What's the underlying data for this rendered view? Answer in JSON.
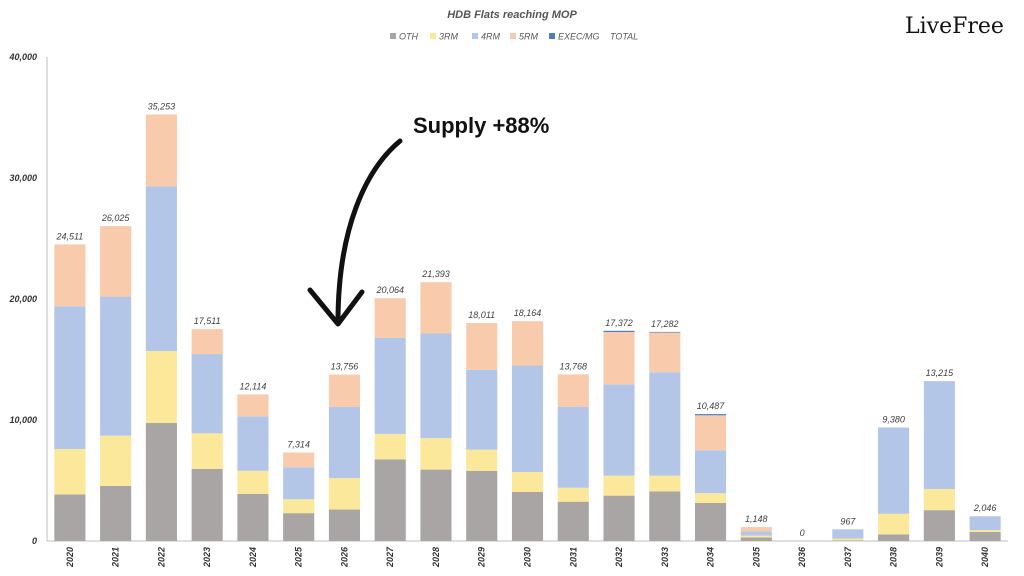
{
  "brand": "LiveFree",
  "annotation": "Supply +88%",
  "chart_data": {
    "type": "bar",
    "stacked": true,
    "title": "HDB Flats reaching MOP",
    "xlabel": "",
    "ylabel": "",
    "ylim": [
      0,
      40000
    ],
    "yticks": [
      "0",
      "10,000",
      "20,000",
      "30,000",
      "40,000"
    ],
    "ytick_values": [
      0,
      10000,
      20000,
      30000,
      40000
    ],
    "grid": false,
    "legend_position": "top",
    "categories": [
      "2020",
      "2021",
      "2022",
      "2023",
      "2024",
      "2025",
      "2026",
      "2027",
      "2028",
      "2029",
      "2030",
      "2031",
      "2032",
      "2033",
      "2034",
      "2035",
      "2036",
      "2037",
      "2038",
      "2039",
      "2040"
    ],
    "series": [
      {
        "name": "OTH",
        "color": "#aaa5a5",
        "values": [
          3850,
          4550,
          9750,
          5950,
          3900,
          2300,
          2600,
          6750,
          5900,
          5800,
          4050,
          3250,
          3750,
          4100,
          3150,
          300,
          0,
          50,
          550,
          2550,
          750
        ]
      },
      {
        "name": "3RM",
        "color": "#fce89a",
        "values": [
          3750,
          4150,
          5950,
          2950,
          1900,
          1150,
          2600,
          2100,
          2600,
          1750,
          1650,
          1150,
          1650,
          1300,
          800,
          150,
          0,
          150,
          1700,
          1750,
          150
        ]
      },
      {
        "name": "4RM",
        "color": "#b4c6e7",
        "values": [
          11800,
          11500,
          13600,
          6550,
          4500,
          2650,
          5900,
          7950,
          8650,
          6600,
          8800,
          6700,
          7550,
          8550,
          3550,
          350,
          0,
          767,
          7130,
          8915,
          1146
        ]
      },
      {
        "name": "5RM",
        "color": "#f8cbad",
        "values": [
          5111,
          5825,
          5953,
          2061,
          1814,
          1214,
          2656,
          3264,
          4243,
          3861,
          3664,
          2668,
          4322,
          3282,
          2887,
          348,
          0,
          0,
          0,
          0,
          0
        ]
      },
      {
        "name": "EXEC/MG",
        "color": "#4d7cc9",
        "values": [
          0,
          0,
          0,
          0,
          0,
          0,
          0,
          0,
          0,
          0,
          0,
          0,
          100,
          50,
          100,
          0,
          0,
          0,
          0,
          0,
          0
        ]
      }
    ],
    "totals_series_name": "TOTAL",
    "totals": [
      "24,511",
      "26,025",
      "35,253",
      "17,511",
      "12,114",
      "7,314",
      "13,756",
      "20,064",
      "21,393",
      "18,011",
      "18,164",
      "13,768",
      "17,372",
      "17,282",
      "10,487",
      "1,148",
      "0",
      "967",
      "9,380",
      "13,215",
      "2,046"
    ]
  }
}
